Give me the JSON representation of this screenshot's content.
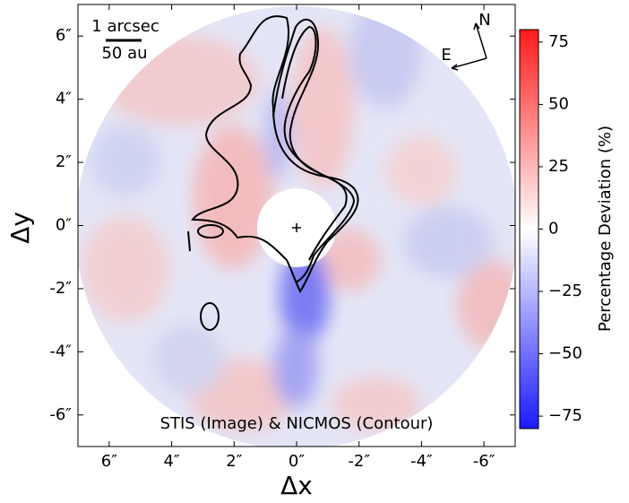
{
  "chart_data": {
    "type": "image",
    "xlabel": "Δx",
    "ylabel": "Δy",
    "xlim": [
      7,
      -7
    ],
    "ylim": [
      -7,
      7
    ],
    "xticks": [
      {
        "value": 6,
        "label": "6″"
      },
      {
        "value": 4,
        "label": "4″"
      },
      {
        "value": 2,
        "label": "2″"
      },
      {
        "value": 0,
        "label": "0″"
      },
      {
        "value": -2,
        "label": "-2″"
      },
      {
        "value": -4,
        "label": "-4″"
      },
      {
        "value": -6,
        "label": "-6″"
      }
    ],
    "yticks": [
      {
        "value": 6,
        "label": "6″"
      },
      {
        "value": 4,
        "label": "4″"
      },
      {
        "value": 2,
        "label": "2″"
      },
      {
        "value": 0,
        "label": "0″"
      },
      {
        "value": -2,
        "label": "-2″"
      },
      {
        "value": -4,
        "label": "-4″"
      },
      {
        "value": -6,
        "label": "-6″"
      }
    ],
    "colorbar_label": "Percentage Deviation (%)",
    "clim": [
      -80,
      80
    ],
    "cticks": [
      {
        "value": -75,
        "label": "−75"
      },
      {
        "value": -50,
        "label": "−50"
      },
      {
        "value": -25,
        "label": "−25"
      },
      0,
      25,
      50,
      75
    ],
    "colormap": [
      "#1a1aff",
      "#ffffff",
      "#ff1a1a"
    ],
    "annotations": {
      "scale_angular": "1 arcsec",
      "scale_physical": "50 au",
      "north": "N",
      "east": "E",
      "caption": "STIS (Image) & NICMOS (Contour)"
    }
  }
}
